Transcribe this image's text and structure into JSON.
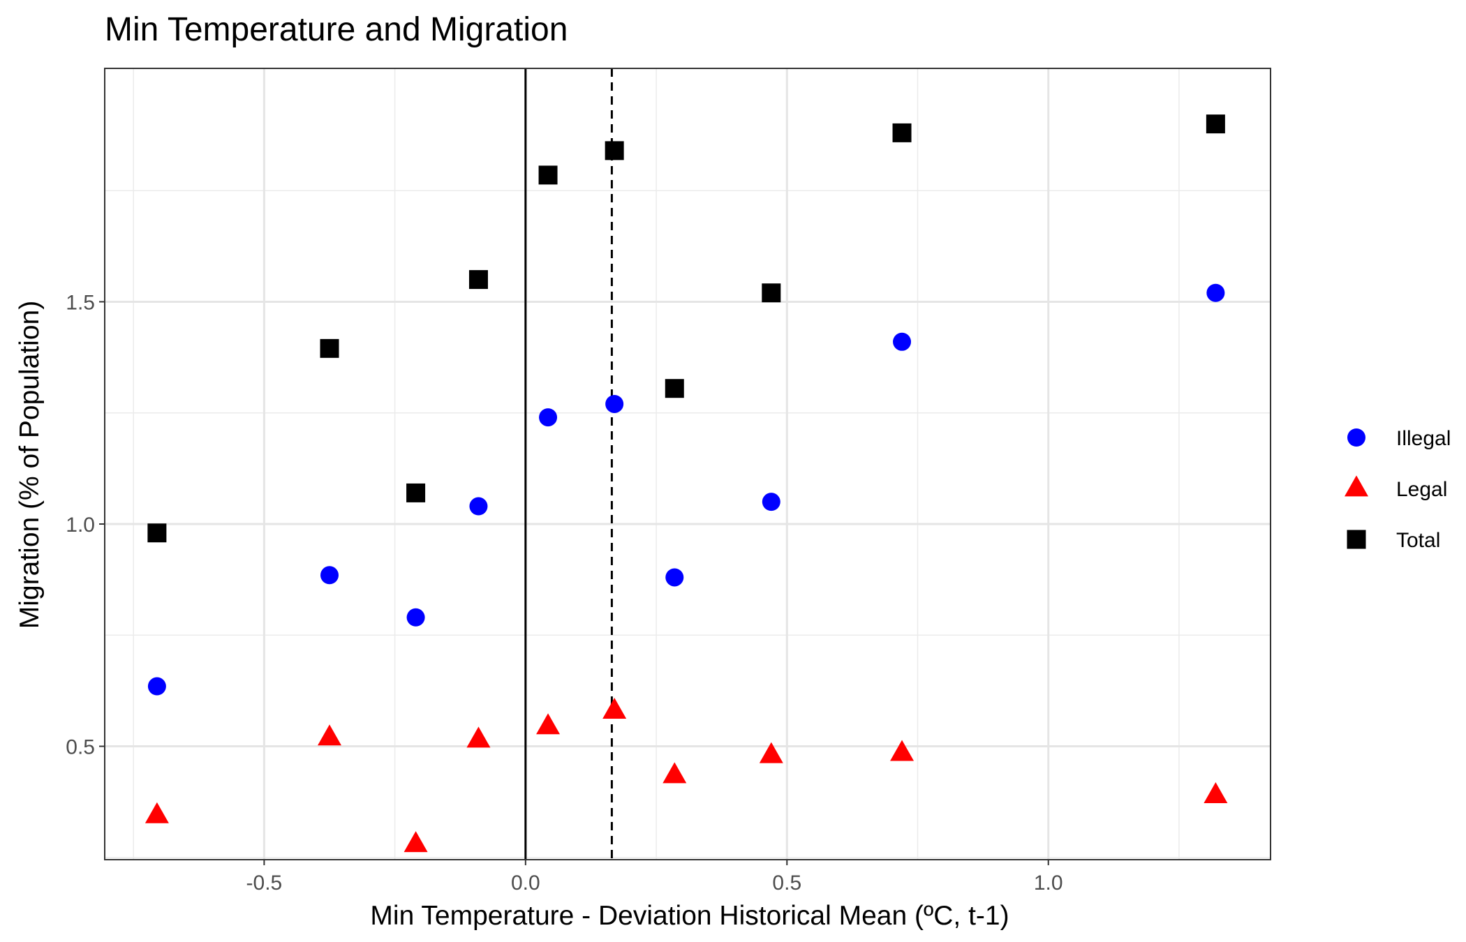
{
  "chart_data": {
    "type": "scatter",
    "title": "Min Temperature and Migration",
    "xlabel": "Min Temperature - Deviation Historical Mean (ºC, t-1)",
    "ylabel": "Migration (% of Population)",
    "xlim": [
      -0.805,
      1.425
    ],
    "ylim": [
      0.245,
      2.025
    ],
    "x_ticks": [
      -0.5,
      0.0,
      0.5,
      1.0
    ],
    "x_tick_labels": [
      "-0.5",
      "0.0",
      "0.5",
      "1.0"
    ],
    "y_ticks": [
      0.5,
      1.0,
      1.5
    ],
    "y_tick_labels": [
      "0.5",
      "1.0",
      "1.5"
    ],
    "reference_lines": [
      {
        "axis": "x",
        "value": 0.0,
        "style": "solid"
      },
      {
        "axis": "x",
        "value": 0.165,
        "style": "dashed"
      }
    ],
    "grid": true,
    "legend_position": "right",
    "x": [
      -0.705,
      -0.375,
      -0.21,
      -0.09,
      0.043,
      0.17,
      0.285,
      0.47,
      0.72,
      1.32
    ],
    "series": [
      {
        "name": "Illegal",
        "marker": "circle",
        "color": "#0000FF",
        "values": [
          0.635,
          0.885,
          0.79,
          1.04,
          1.24,
          1.27,
          0.88,
          1.05,
          1.41,
          1.52
        ]
      },
      {
        "name": "Legal",
        "marker": "triangle",
        "color": "#FF0000",
        "values": [
          0.345,
          0.52,
          0.28,
          0.515,
          0.545,
          0.58,
          0.435,
          0.48,
          0.485,
          0.39
        ]
      },
      {
        "name": "Total",
        "marker": "square",
        "color": "#000000",
        "values": [
          0.98,
          1.395,
          1.07,
          1.55,
          1.785,
          1.84,
          1.305,
          1.52,
          1.88,
          1.9
        ]
      }
    ]
  }
}
